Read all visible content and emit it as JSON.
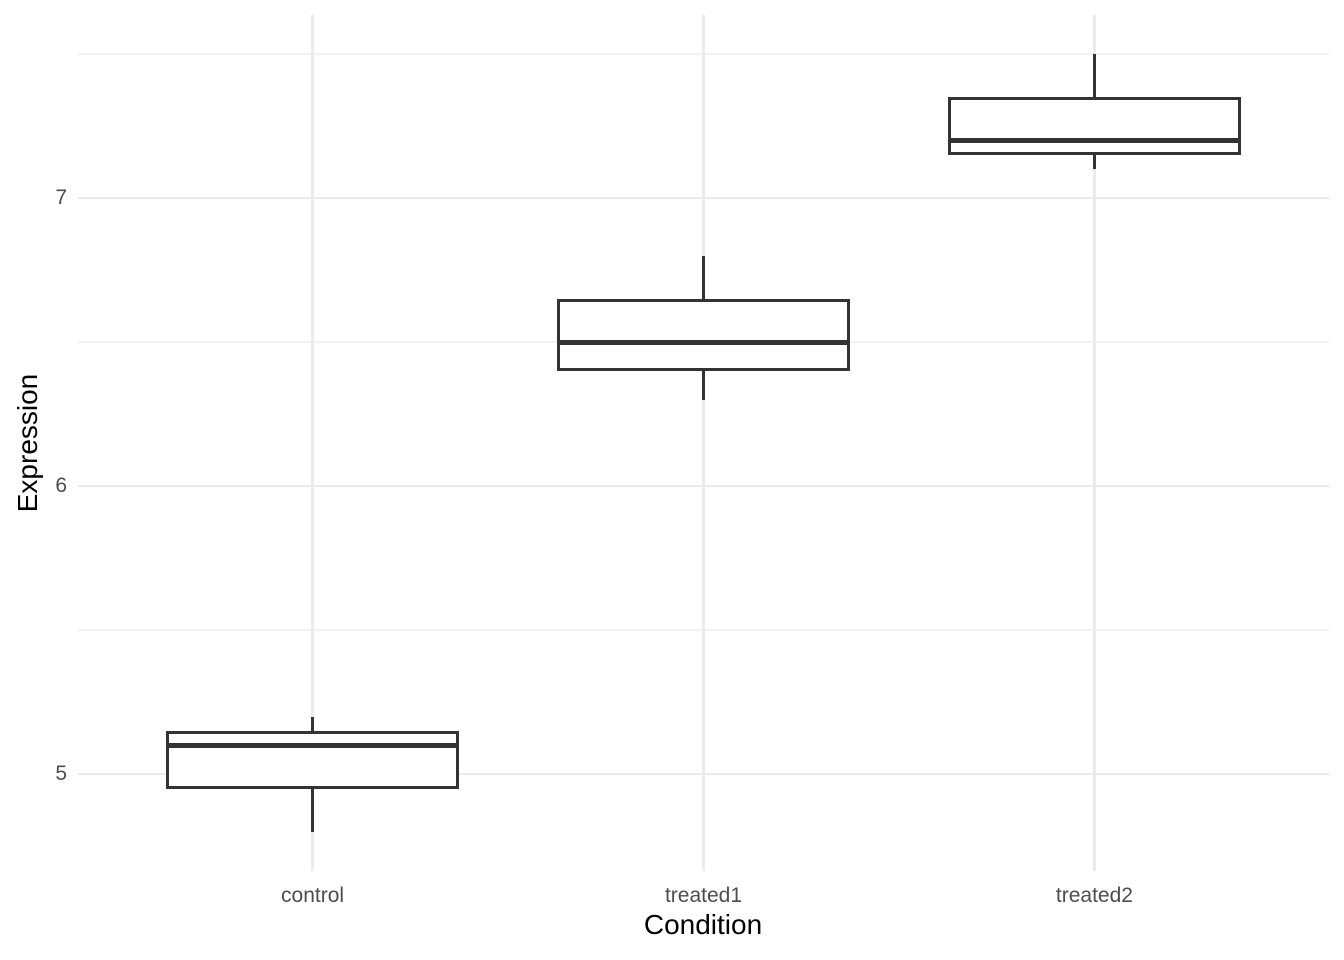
{
  "chart_data": {
    "type": "boxplot",
    "title": "",
    "xlabel": "Condition",
    "ylabel": "Expression",
    "categories": [
      "control",
      "treated1",
      "treated2"
    ],
    "series": [
      {
        "name": "control",
        "whisker_low": 4.8,
        "q1": 4.95,
        "median": 5.1,
        "q3": 5.15,
        "whisker_high": 5.2
      },
      {
        "name": "treated1",
        "whisker_low": 6.3,
        "q1": 6.4,
        "median": 6.5,
        "q3": 6.65,
        "whisker_high": 6.8
      },
      {
        "name": "treated2",
        "whisker_low": 7.1,
        "q1": 7.15,
        "median": 7.2,
        "q3": 7.35,
        "whisker_high": 7.5
      }
    ],
    "ylim": [
      4.664,
      7.635
    ],
    "y_major_ticks": [
      {
        "value": 5,
        "label": "5"
      },
      {
        "value": 6,
        "label": "6"
      },
      {
        "value": 7,
        "label": "7"
      }
    ],
    "y_minor_ticks": [
      5.5,
      6.5,
      7.5
    ],
    "grid": "major-and-minor",
    "legend": "none"
  },
  "style": {
    "background": "#ffffff",
    "box_stroke": "#333333",
    "box_fill": "#ffffff",
    "grid_major_color": "#ebebeb",
    "grid_minor_color": "#f2f2f2",
    "tick_label_color": "#4d4d4d",
    "axis_title_color": "#000000"
  }
}
